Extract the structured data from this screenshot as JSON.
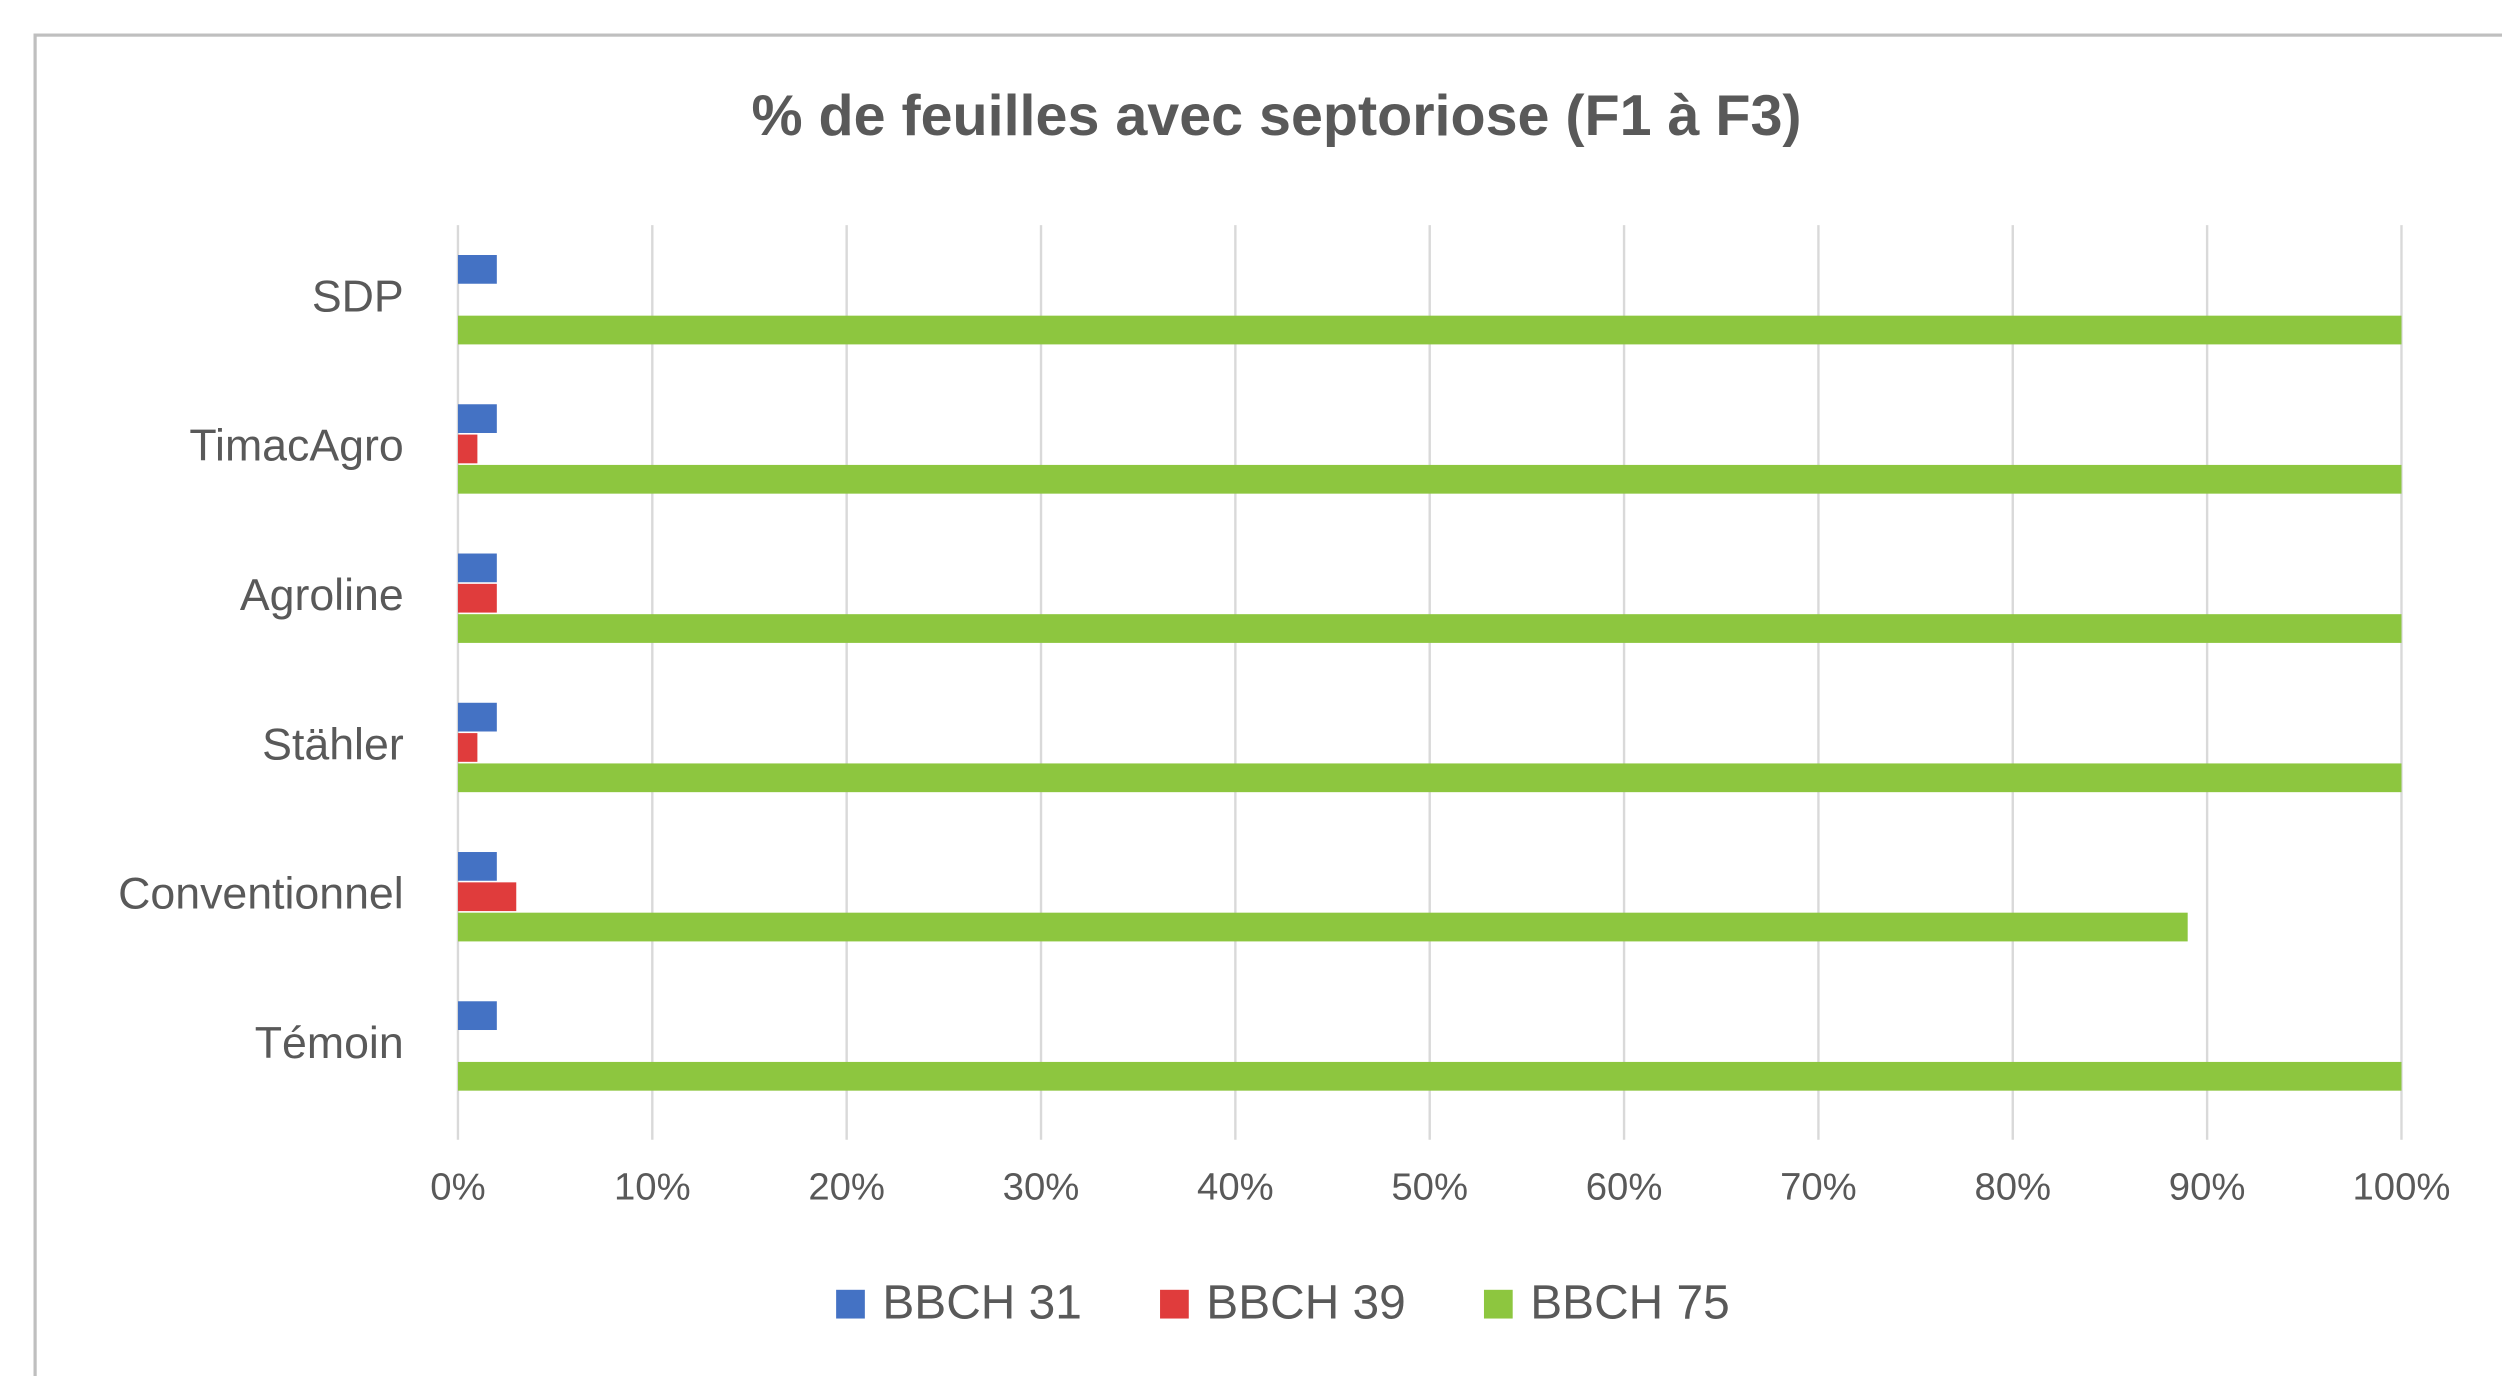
{
  "chart_data": {
    "type": "bar",
    "orientation": "horizontal",
    "title": "% de feuilles avec septoriose (F1 à F3)",
    "categories": [
      "SDP",
      "TimacAgro",
      "Agroline",
      "Stähler",
      "Conventionnel",
      "Témoin"
    ],
    "series": [
      {
        "name": "BBCH 31",
        "color": "#4472c4",
        "values": [
          2,
          2,
          2,
          2,
          2,
          2
        ]
      },
      {
        "name": "BBCH 39",
        "color": "#e03c3c",
        "values": [
          0,
          1,
          2,
          1,
          3,
          0
        ]
      },
      {
        "name": "BBCH 75",
        "color": "#8dc63f",
        "values": [
          100,
          100,
          100,
          100,
          89,
          100
        ]
      }
    ],
    "xlim": [
      0,
      100
    ],
    "xticks": [
      {
        "value": 0,
        "label": "0%"
      },
      {
        "value": 10,
        "label": "10%"
      },
      {
        "value": 20,
        "label": "20%"
      },
      {
        "value": 30,
        "label": "30%"
      },
      {
        "value": 40,
        "label": "40%"
      },
      {
        "value": 50,
        "label": "50%"
      },
      {
        "value": 60,
        "label": "60%"
      },
      {
        "value": 70,
        "label": "70%"
      },
      {
        "value": 80,
        "label": "80%"
      },
      {
        "value": 90,
        "label": "90%"
      },
      {
        "value": 100,
        "label": "100%"
      }
    ],
    "grid": true,
    "legend": "bottom"
  }
}
